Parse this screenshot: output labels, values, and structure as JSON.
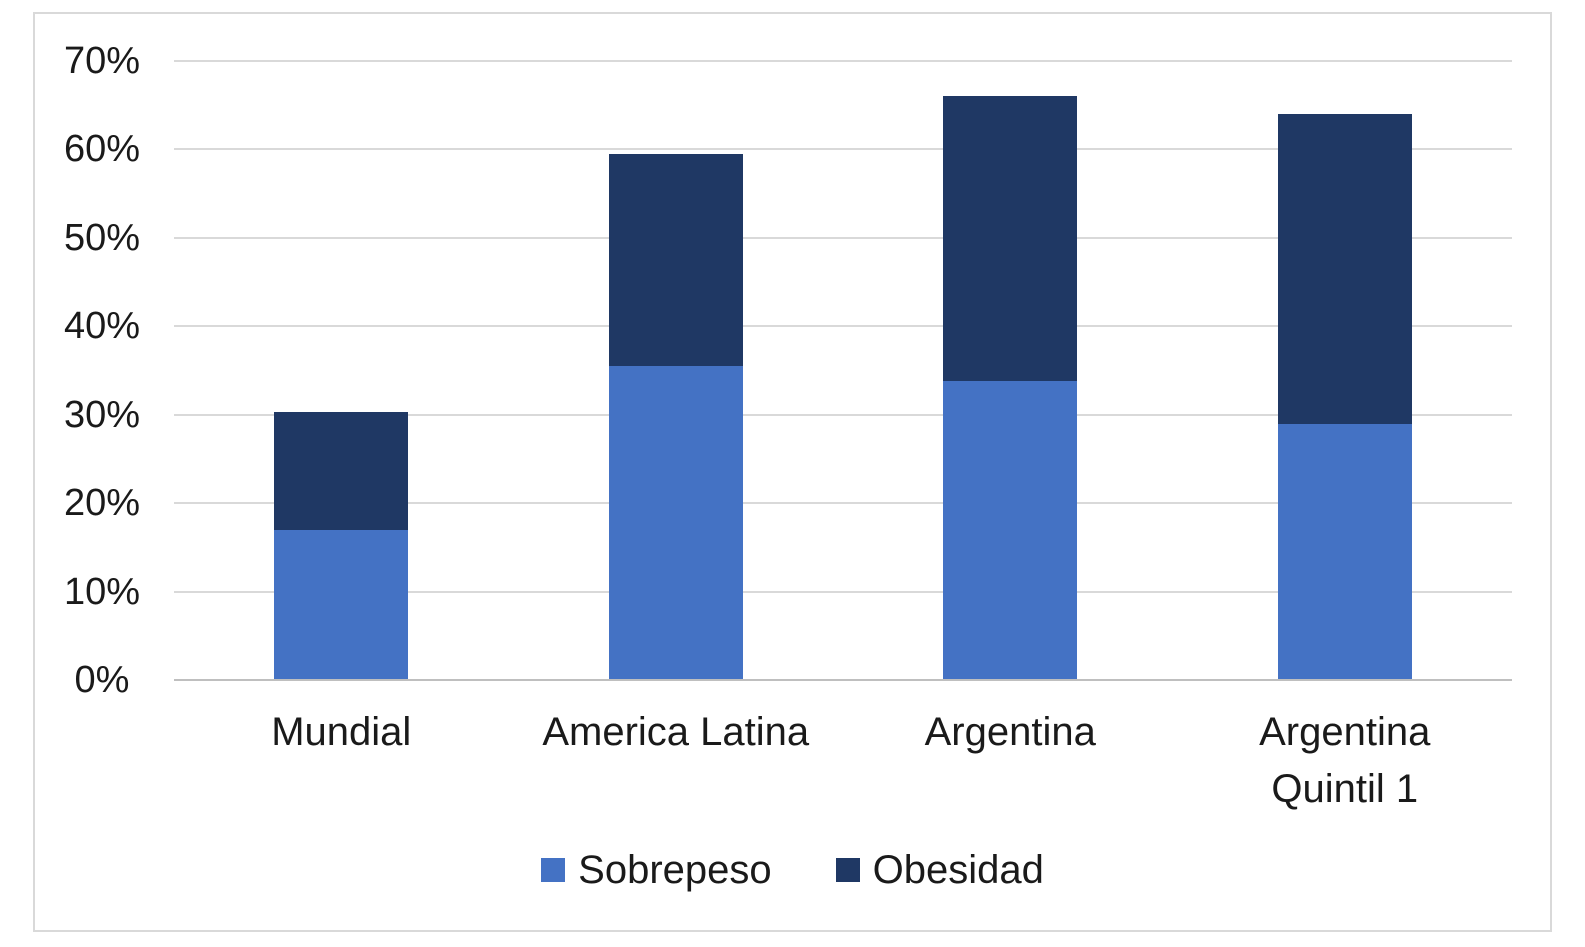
{
  "chart_data": {
    "type": "bar",
    "stacked": true,
    "title": "",
    "xlabel": "",
    "ylabel": "",
    "categories": [
      "Mundial",
      "America Latina",
      "Argentina",
      "Argentina Quintil 1"
    ],
    "category_label_lines": [
      [
        "Mundial"
      ],
      [
        "America Latina"
      ],
      [
        "Argentina"
      ],
      [
        "Argentina",
        "Quintil 1"
      ]
    ],
    "series": [
      {
        "name": "Sobrepeso",
        "color": "#4472C4",
        "values": [
          17.0,
          35.5,
          33.8,
          29.0
        ]
      },
      {
        "name": "Obesidad",
        "color": "#1F3864",
        "values": [
          13.3,
          24.0,
          32.2,
          35.0
        ]
      }
    ],
    "stack_totals": [
      30.3,
      59.5,
      66.0,
      64.0
    ],
    "ylim": [
      0,
      70
    ],
    "ytick_step": 10,
    "ytick_labels": [
      "0%",
      "10%",
      "20%",
      "30%",
      "40%",
      "50%",
      "60%",
      "70%"
    ],
    "grid": true,
    "legend_position": "bottom",
    "colors": {
      "gridline": "#D9D9D9",
      "axis_line": "#BFBFBF",
      "frame_border": "#D9D9D9",
      "text": "#1A1A1A",
      "background": "#FFFFFF"
    }
  }
}
